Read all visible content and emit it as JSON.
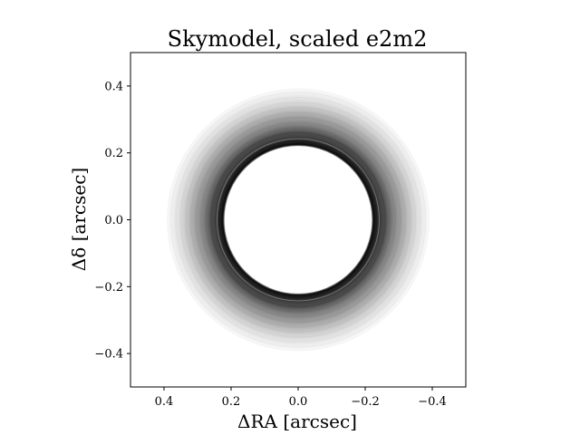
{
  "chart_data": {
    "type": "heatmap",
    "title": "Skymodel, scaled e2m2",
    "xlabel": "ΔRA [arcsec]",
    "ylabel": "Δδ [arcsec]",
    "xlim": [
      0.5,
      -0.5
    ],
    "ylim": [
      -0.5,
      0.5
    ],
    "x_ticks": [
      0.4,
      0.2,
      0.0,
      -0.2,
      -0.4
    ],
    "x_tick_labels": [
      "0.4",
      "0.2",
      "0.0",
      "−0.2",
      "−0.4"
    ],
    "y_ticks": [
      0.4,
      0.2,
      0.0,
      -0.2,
      -0.4
    ],
    "y_tick_labels": [
      "0.4",
      "0.2",
      "0.0",
      "−0.2",
      "−0.4"
    ],
    "grid": false,
    "colormap": "greys",
    "ring": {
      "center": [
        0.0,
        0.0
      ],
      "inner_edge_radius": 0.22,
      "outer_extent_radius": 0.39
    },
    "radial_profile": [
      {
        "r": 0.215,
        "intensity": 0.0
      },
      {
        "r": 0.225,
        "intensity": 0.95
      },
      {
        "r": 0.235,
        "intensity": 0.85
      },
      {
        "r": 0.245,
        "intensity": 0.75
      },
      {
        "r": 0.26,
        "intensity": 0.7
      },
      {
        "r": 0.275,
        "intensity": 0.55
      },
      {
        "r": 0.29,
        "intensity": 0.45
      },
      {
        "r": 0.305,
        "intensity": 0.38
      },
      {
        "r": 0.32,
        "intensity": 0.3
      },
      {
        "r": 0.335,
        "intensity": 0.22
      },
      {
        "r": 0.35,
        "intensity": 0.15
      },
      {
        "r": 0.365,
        "intensity": 0.1
      },
      {
        "r": 0.38,
        "intensity": 0.05
      },
      {
        "r": 0.39,
        "intensity": 0.02
      }
    ]
  }
}
